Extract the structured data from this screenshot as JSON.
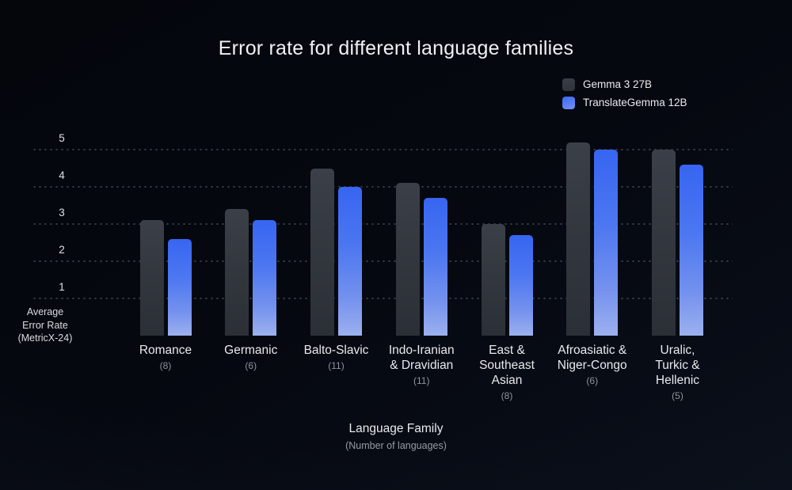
{
  "page": {
    "title": "Error rate for different language families"
  },
  "legend": {
    "items": [
      {
        "label": "Gemma 3 27B",
        "color_top": "#3b4048",
        "color_bottom": "#2e323a"
      },
      {
        "label": "TranslateGemma 12B",
        "color_top": "#3c68f2",
        "color_bottom": "#7490f2"
      }
    ]
  },
  "axes": {
    "y_title_lines": [
      "Average",
      "Error Rate",
      "(MetricX-24)"
    ],
    "x_title": "Language Family",
    "x_subtitle": "(Number of languages)"
  },
  "chart_data": {
    "type": "bar",
    "title": "Error rate for different language families",
    "categories": [
      "Romance",
      "Germanic",
      "Balto-Slavic",
      "Indo-Iranian & Dravidian",
      "East & Southeast Asian",
      "Afroasiatic & Niger-Congo",
      "Uralic, Turkic & Hellenic"
    ],
    "category_label_lines": [
      [
        "Romance"
      ],
      [
        "Germanic"
      ],
      [
        "Balto-Slavic"
      ],
      [
        "Indo-Iranian",
        "& Dravidian"
      ],
      [
        "East &",
        "Southeast",
        "Asian"
      ],
      [
        "Afroasiatic &",
        "Niger-Congo"
      ],
      [
        "Uralic,",
        "Turkic &",
        "Hellenic"
      ]
    ],
    "category_counts": [
      "(8)",
      "(6)",
      "(11)",
      "(11)",
      "(8)",
      "(6)",
      "(5)"
    ],
    "series": [
      {
        "name": "Gemma 3 27B",
        "values": [
          3.1,
          3.4,
          4.5,
          4.1,
          3.0,
          5.2,
          5.0
        ]
      },
      {
        "name": "TranslateGemma 12B",
        "values": [
          2.6,
          3.1,
          4.0,
          3.7,
          2.7,
          5.0,
          4.6
        ]
      }
    ],
    "yticks": [
      1,
      2,
      3,
      4,
      5
    ],
    "ylim": [
      0,
      5.5
    ],
    "ylabel": "Average Error Rate (MetricX-24)",
    "xlabel": "Language Family (Number of languages)",
    "grid": "dotted-horizontal",
    "legend_position": "top-right"
  },
  "colors": {
    "background_top": "#04060c",
    "background_bottom": "#0a0f1a",
    "bar_gray": "#33373e",
    "bar_blue_top": "#3765f1",
    "bar_blue_bottom": "#9cb1ef",
    "text_primary": "#e8eaed",
    "text_muted": "#8f959d",
    "grid_dot": "rgba(176,186,204,0.30)"
  }
}
